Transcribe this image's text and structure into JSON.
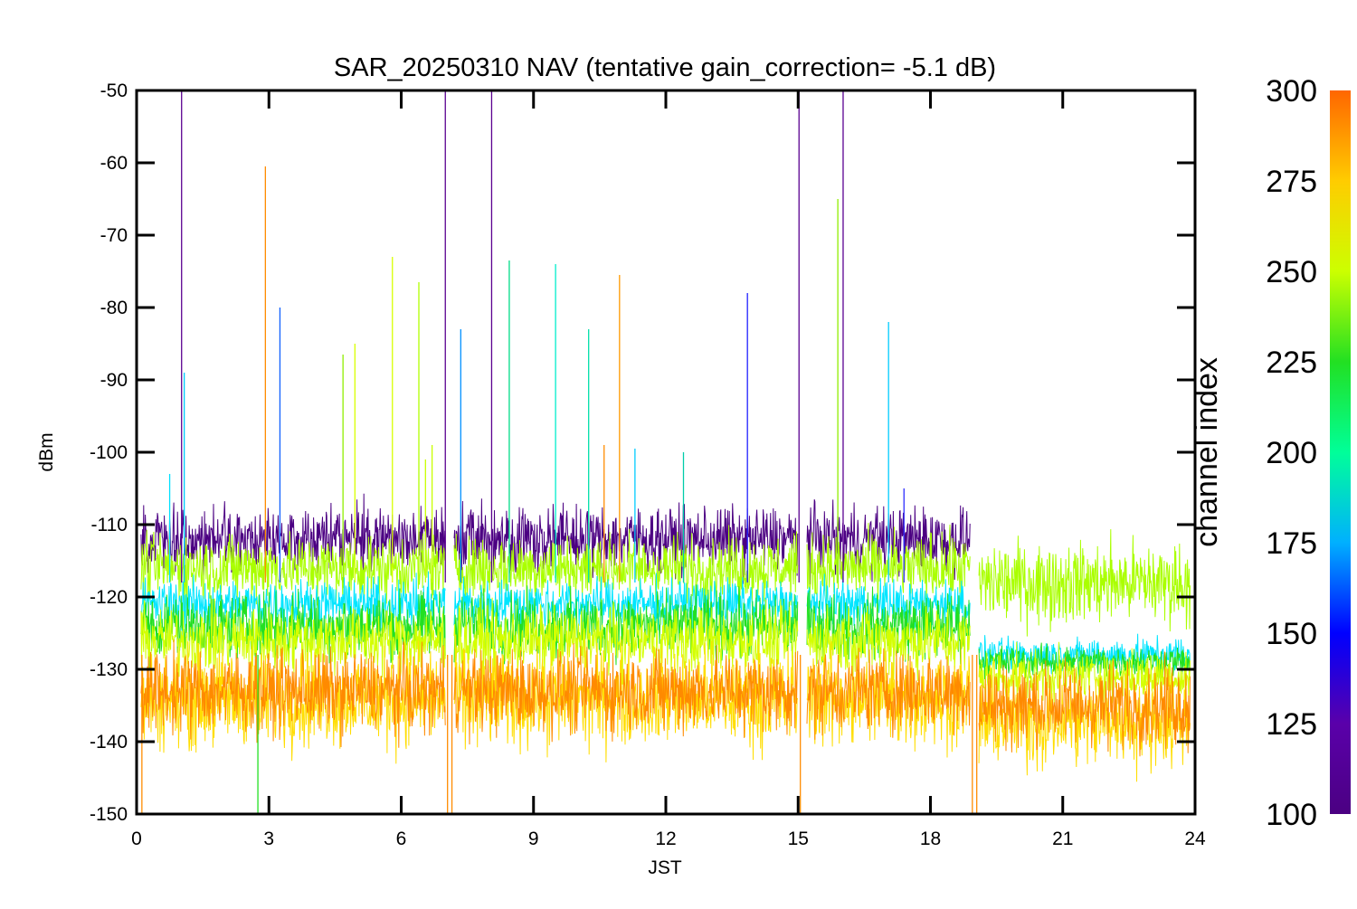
{
  "chart_data": {
    "type": "line",
    "title": "SAR_20250310 NAV (tentative gain_correction= -5.1 dB)",
    "xlabel": "JST",
    "ylabel": "dBm",
    "xlim": [
      0,
      24
    ],
    "ylim": [
      -150,
      -50
    ],
    "x_ticks": [
      0,
      3,
      6,
      9,
      12,
      15,
      18,
      21,
      24
    ],
    "y_ticks": [
      -50,
      -60,
      -70,
      -80,
      -90,
      -100,
      -110,
      -120,
      -130,
      -140,
      -150
    ],
    "grid": false,
    "colorbar": {
      "label": "channel index",
      "range": [
        100,
        300
      ],
      "ticks": [
        300,
        275,
        250,
        225,
        200,
        175,
        150,
        125,
        100
      ],
      "colormap": "rainbow"
    },
    "data_gaps_hours": [
      7.0,
      15.1,
      19.0
    ],
    "series": [
      {
        "channel": 110,
        "color": "#4b0082",
        "segments": [
          {
            "x_start": 0.1,
            "x_end": 7.0,
            "mean": -112,
            "noise": 4
          },
          {
            "x_start": 7.2,
            "x_end": 15.0,
            "mean": -112,
            "noise": 4
          },
          {
            "x_start": 15.2,
            "x_end": 18.9,
            "mean": -112,
            "noise": 4
          }
        ]
      },
      {
        "channel": 255,
        "color": "#aaff00",
        "segments": [
          {
            "x_start": 0.1,
            "x_end": 7.0,
            "mean": -116,
            "noise": 4
          },
          {
            "x_start": 7.2,
            "x_end": 15.0,
            "mean": -116,
            "noise": 4
          },
          {
            "x_start": 15.2,
            "x_end": 18.9,
            "mean": -116,
            "noise": 4
          },
          {
            "x_start": 19.1,
            "x_end": 23.9,
            "mean": -118,
            "noise": 5
          }
        ]
      },
      {
        "channel": 175,
        "color": "#00e5ff",
        "segments": [
          {
            "x_start": 0.1,
            "x_end": 7.0,
            "mean": -121,
            "noise": 3
          },
          {
            "x_start": 7.2,
            "x_end": 15.0,
            "mean": -121,
            "noise": 3
          },
          {
            "x_start": 15.2,
            "x_end": 18.9,
            "mean": -121,
            "noise": 3
          },
          {
            "x_start": 19.1,
            "x_end": 23.9,
            "mean": -128,
            "noise": 2
          }
        ]
      },
      {
        "channel": 230,
        "color": "#22e022",
        "segments": [
          {
            "x_start": 0.1,
            "x_end": 7.0,
            "mean": -124,
            "noise": 4
          },
          {
            "x_start": 7.2,
            "x_end": 15.0,
            "mean": -124,
            "noise": 4
          },
          {
            "x_start": 15.2,
            "x_end": 18.9,
            "mean": -124,
            "noise": 4
          },
          {
            "x_start": 19.1,
            "x_end": 23.9,
            "mean": -129,
            "noise": 2
          }
        ]
      },
      {
        "channel": 265,
        "color": "#d4ff00",
        "segments": [
          {
            "x_start": 0.1,
            "x_end": 7.0,
            "mean": -126,
            "noise": 4
          },
          {
            "x_start": 7.2,
            "x_end": 15.0,
            "mean": -126,
            "noise": 4
          },
          {
            "x_start": 15.2,
            "x_end": 18.9,
            "mean": -126,
            "noise": 4
          },
          {
            "x_start": 19.1,
            "x_end": 23.9,
            "mean": -131,
            "noise": 3
          }
        ]
      },
      {
        "channel": 280,
        "color": "#ffdd00",
        "segments": [
          {
            "x_start": 0.1,
            "x_end": 7.0,
            "mean": -134,
            "noise": 6
          },
          {
            "x_start": 7.2,
            "x_end": 15.0,
            "mean": -134,
            "noise": 6
          },
          {
            "x_start": 15.2,
            "x_end": 18.9,
            "mean": -134,
            "noise": 6
          },
          {
            "x_start": 19.1,
            "x_end": 23.9,
            "mean": -137,
            "noise": 6
          }
        ]
      },
      {
        "channel": 295,
        "color": "#ff8a00",
        "segments": [
          {
            "x_start": 0.1,
            "x_end": 7.0,
            "mean": -133,
            "noise": 5
          },
          {
            "x_start": 7.2,
            "x_end": 15.0,
            "mean": -133,
            "noise": 5
          },
          {
            "x_start": 15.2,
            "x_end": 18.9,
            "mean": -133,
            "noise": 5
          },
          {
            "x_start": 19.1,
            "x_end": 23.9,
            "mean": -135,
            "noise": 5
          }
        ]
      }
    ],
    "spikes": [
      {
        "x": 0.75,
        "y_top": -103,
        "color": "#00e0ff"
      },
      {
        "x": 1.02,
        "y_top": -50,
        "color": "#5a0090"
      },
      {
        "x": 1.08,
        "y_top": -89,
        "color": "#00ccff"
      },
      {
        "x": 2.92,
        "y_top": -60.5,
        "color": "#ff8c00"
      },
      {
        "x": 3.25,
        "y_top": -80,
        "color": "#1060ff"
      },
      {
        "x": 4.68,
        "y_top": -86.5,
        "color": "#90ee00"
      },
      {
        "x": 4.95,
        "y_top": -85,
        "color": "#d8ff00"
      },
      {
        "x": 5.8,
        "y_top": -73,
        "color": "#d8ff00"
      },
      {
        "x": 6.4,
        "y_top": -76.5,
        "color": "#b0ff00"
      },
      {
        "x": 6.55,
        "y_top": -101,
        "color": "#c8ff00"
      },
      {
        "x": 6.7,
        "y_top": -99,
        "color": "#c8ff00"
      },
      {
        "x": 7.0,
        "y_top": -50,
        "color": "#5a0090"
      },
      {
        "x": 7.35,
        "y_top": -83,
        "color": "#0090ff"
      },
      {
        "x": 8.05,
        "y_top": -50,
        "color": "#5a0090"
      },
      {
        "x": 8.45,
        "y_top": -73.5,
        "color": "#00dd88"
      },
      {
        "x": 9.5,
        "y_top": -74,
        "color": "#00eecc"
      },
      {
        "x": 10.25,
        "y_top": -83,
        "color": "#00e0aa"
      },
      {
        "x": 10.6,
        "y_top": -99,
        "color": "#ff8c00"
      },
      {
        "x": 10.95,
        "y_top": -75.5,
        "color": "#ff9a00"
      },
      {
        "x": 11.3,
        "y_top": -99.5,
        "color": "#00ccff"
      },
      {
        "x": 12.4,
        "y_top": -100,
        "color": "#00ccaa"
      },
      {
        "x": 13.85,
        "y_top": -78,
        "color": "#2020ff"
      },
      {
        "x": 15.02,
        "y_top": -50,
        "color": "#5a0090"
      },
      {
        "x": 15.9,
        "y_top": -65,
        "color": "#90ee00"
      },
      {
        "x": 16.02,
        "y_top": -50,
        "color": "#5a0090"
      },
      {
        "x": 17.05,
        "y_top": -82,
        "color": "#00ccff"
      },
      {
        "x": 17.4,
        "y_top": -105,
        "color": "#3030ff"
      }
    ],
    "dropouts": [
      {
        "x": 0.12,
        "y_bottom": -150,
        "color": "#ff8c00"
      },
      {
        "x": 2.75,
        "y_bottom": -150,
        "color": "#22e022"
      },
      {
        "x": 7.05,
        "y_bottom": -150,
        "color": "#ff8c00"
      },
      {
        "x": 7.15,
        "y_bottom": -150,
        "color": "#ff8c00"
      },
      {
        "x": 15.05,
        "y_bottom": -150,
        "color": "#ff8c00"
      },
      {
        "x": 18.95,
        "y_bottom": -150,
        "color": "#ff8c00"
      },
      {
        "x": 19.05,
        "y_bottom": -150,
        "color": "#ff8c00"
      }
    ]
  }
}
